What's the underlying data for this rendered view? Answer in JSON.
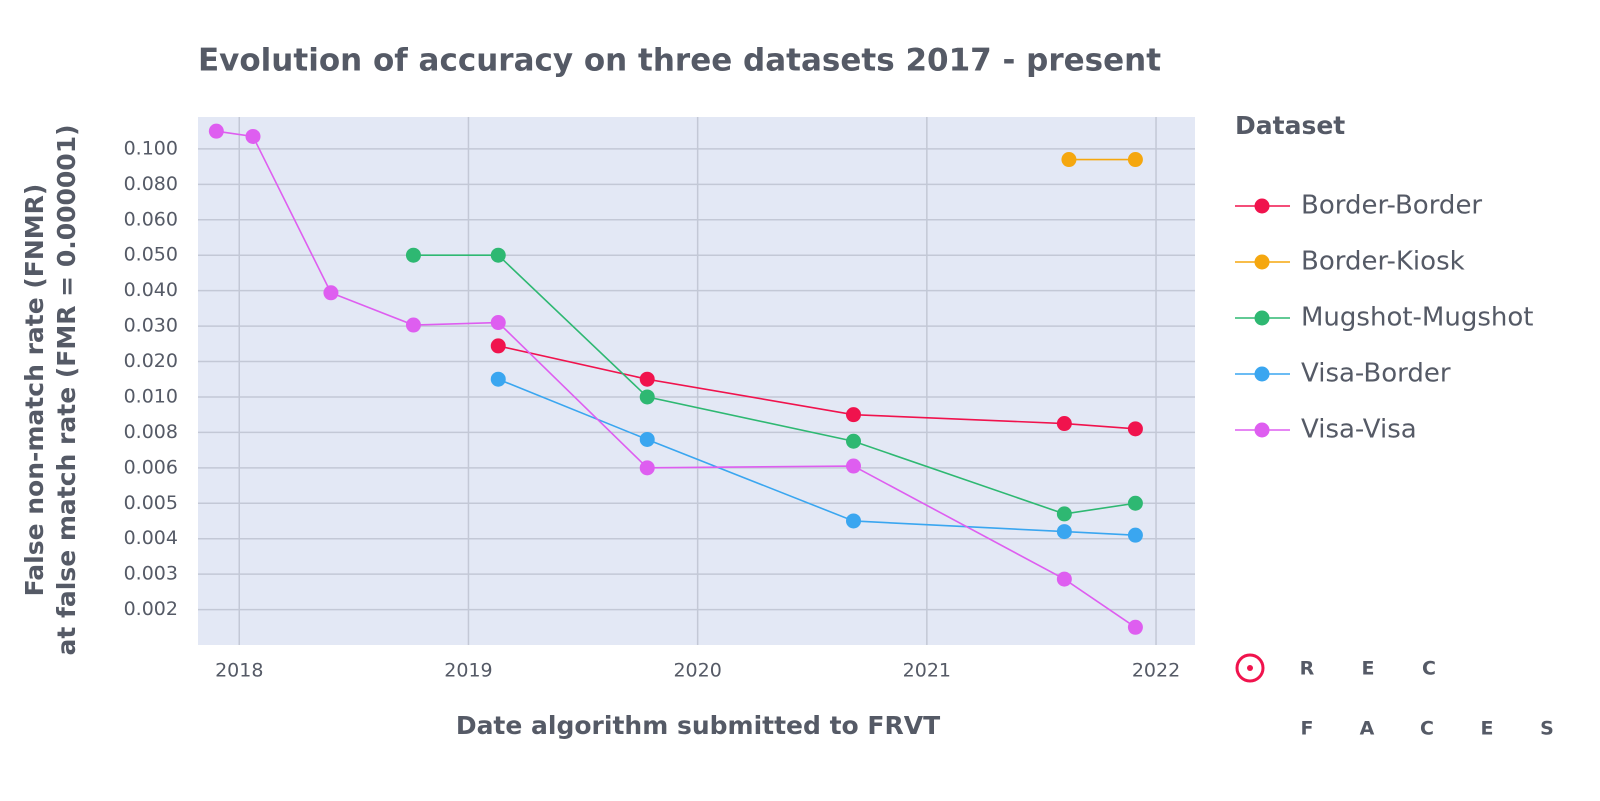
{
  "chart_data": {
    "type": "line",
    "title": "Evolution of accuracy on three datasets 2017 - present",
    "xlabel": "Date algorithm submitted to FRVT",
    "ylabel": [
      "False non-match rate (FNMR)",
      "at false match rate (FMR = 0.000001)"
    ],
    "legend_title": "Dataset",
    "legend": "right",
    "grid": true,
    "xlim": [
      2017.82,
      2022.17
    ],
    "xticks": [
      2018,
      2019,
      2020,
      2021,
      2022
    ],
    "ylim": [
      0.001,
      0.118
    ],
    "yticks": [
      0.002,
      0.003,
      0.004,
      0.005,
      0.006,
      0.008,
      {
        "value": 0.01,
        "label": "0.010"
      },
      {
        "value": 0.02,
        "label": "0.020"
      },
      {
        "value": 0.03,
        "label": "0.030"
      },
      {
        "value": 0.04,
        "label": "0.040"
      },
      {
        "value": 0.05,
        "label": "0.050"
      },
      {
        "value": 0.06,
        "label": "0.060"
      },
      {
        "value": 0.08,
        "label": "0.080"
      },
      {
        "value": 0.1,
        "label": "0.100"
      }
    ],
    "series": [
      {
        "name": "Border-Border",
        "color": "#f0134d",
        "x": [
          2019.13,
          2019.78,
          2020.68,
          2021.6,
          2021.91
        ],
        "values": [
          0.0244,
          0.015,
          0.009,
          0.0085,
          0.0082
        ]
      },
      {
        "name": "Border-Kiosk",
        "color": "#f5a70f",
        "x": [
          2021.62,
          2021.91
        ],
        "values": [
          0.094,
          0.094
        ]
      },
      {
        "name": "Mugshot-Mugshot",
        "color": "#2eb872",
        "x": [
          2018.76,
          2019.13,
          2019.78,
          2020.68,
          2021.6,
          2021.91
        ],
        "values": [
          0.05,
          0.05,
          0.01,
          0.0075,
          0.0047,
          0.005
        ]
      },
      {
        "name": "Visa-Border",
        "color": "#3aa6f0",
        "x": [
          2019.13,
          2019.78,
          2020.68,
          2021.6,
          2021.91
        ],
        "values": [
          0.015,
          0.0076,
          0.0045,
          0.0042,
          0.0041
        ]
      },
      {
        "name": "Visa-Visa",
        "color": "#de5ef0",
        "x": [
          2017.9,
          2018.06,
          2018.4,
          2018.76,
          2019.13,
          2019.78,
          2020.68,
          2021.6,
          2021.91
        ],
        "values": [
          0.11,
          0.107,
          0.0394,
          0.0303,
          0.031,
          0.006,
          0.0061,
          0.00286,
          0.0015
        ]
      }
    ]
  },
  "logo": {
    "row1": [
      "R",
      "E",
      "C"
    ],
    "row2": [
      "F",
      "A",
      "C",
      "E",
      "S"
    ]
  }
}
